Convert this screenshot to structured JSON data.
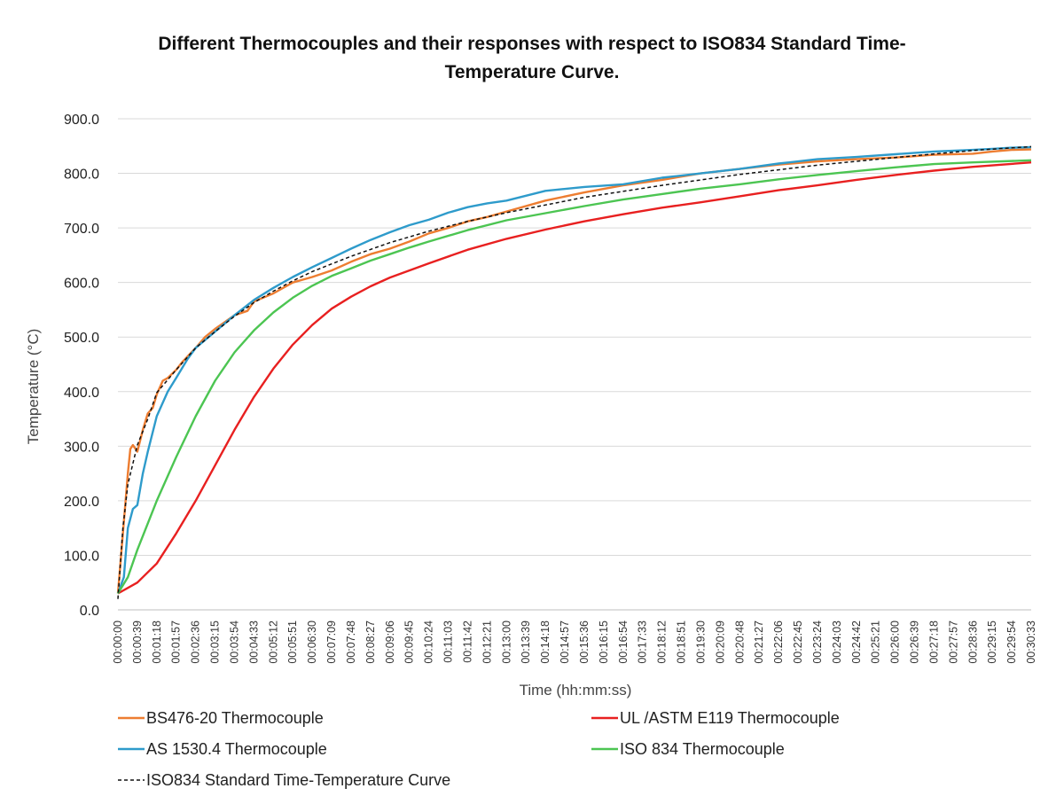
{
  "chart_data": {
    "type": "line",
    "title_line1": "Different Thermocouples and their responses with respect to ISO834 Standard Time-",
    "title_line2": "Temperature Curve.",
    "xlabel": "Time (hh:mm:ss)",
    "ylabel": "Temperature (°C)",
    "ylim": [
      0,
      900
    ],
    "y_ticks": [
      "0.0",
      "100.0",
      "200.0",
      "300.0",
      "400.0",
      "500.0",
      "600.0",
      "700.0",
      "800.0",
      "900.0"
    ],
    "x_range_seconds": [
      0,
      1833
    ],
    "x_ticks": [
      "00:00:00",
      "00:00:39",
      "00:01:18",
      "00:01:57",
      "00:02:36",
      "00:03:15",
      "00:03:54",
      "00:04:33",
      "00:05:12",
      "00:05:51",
      "00:06:30",
      "00:07:09",
      "00:07:48",
      "00:08:27",
      "00:09:06",
      "00:09:45",
      "00:10:24",
      "00:11:03",
      "00:11:42",
      "00:12:21",
      "00:13:00",
      "00:13:39",
      "00:14:18",
      "00:14:57",
      "00:15:36",
      "00:16:15",
      "00:16:54",
      "00:17:33",
      "00:18:12",
      "00:18:51",
      "00:19:30",
      "00:20:09",
      "00:20:48",
      "00:21:27",
      "00:22:06",
      "00:22:45",
      "00:23:24",
      "00:24:03",
      "00:24:42",
      "00:25:21",
      "00:26:00",
      "00:26:39",
      "00:27:18",
      "00:27:57",
      "00:28:36",
      "00:29:15",
      "00:29:54",
      "00:30:33"
    ],
    "grid": "horizontal",
    "legend_position": "bottom",
    "series": [
      {
        "name": "BS476-20 Thermocouple",
        "color": "#ED7D31",
        "dash": "solid",
        "x": [
          0,
          10,
          20,
          25,
          30,
          39,
          50,
          60,
          70,
          78,
          90,
          100,
          117,
          130,
          156,
          175,
          195,
          234,
          260,
          273,
          312,
          351,
          390,
          429,
          468,
          507,
          546,
          585,
          624,
          663,
          702,
          741,
          780,
          858,
          936,
          1014,
          1092,
          1170,
          1248,
          1326,
          1404,
          1482,
          1560,
          1638,
          1716,
          1755,
          1794,
          1833
        ],
        "y": [
          30,
          140,
          250,
          295,
          302,
          290,
          330,
          360,
          370,
          395,
          420,
          425,
          440,
          455,
          480,
          500,
          515,
          540,
          548,
          565,
          580,
          600,
          610,
          622,
          638,
          652,
          662,
          675,
          690,
          700,
          712,
          720,
          730,
          750,
          765,
          778,
          788,
          800,
          808,
          816,
          822,
          826,
          829,
          834,
          836,
          840,
          843,
          844
        ]
      },
      {
        "name": "UL /ASTM E119 Thermocouple",
        "color": "#E82020",
        "dash": "solid",
        "x": [
          0,
          39,
          78,
          117,
          156,
          195,
          234,
          273,
          312,
          351,
          390,
          429,
          468,
          507,
          546,
          585,
          624,
          702,
          780,
          858,
          936,
          1014,
          1092,
          1170,
          1248,
          1326,
          1404,
          1482,
          1560,
          1638,
          1716,
          1833
        ],
        "y": [
          30,
          50,
          85,
          140,
          200,
          265,
          330,
          390,
          442,
          486,
          522,
          552,
          574,
          593,
          609,
          622,
          635,
          660,
          680,
          697,
          712,
          725,
          737,
          747,
          758,
          769,
          778,
          788,
          797,
          805,
          812,
          820
        ]
      },
      {
        "name": "AS 1530.4 Thermocouple",
        "color": "#2E9BCB",
        "dash": "solid",
        "x": [
          0,
          12,
          20,
          30,
          39,
          50,
          60,
          78,
          100,
          117,
          140,
          156,
          195,
          234,
          273,
          312,
          351,
          390,
          429,
          468,
          507,
          546,
          585,
          624,
          663,
          702,
          741,
          780,
          858,
          936,
          1014,
          1092,
          1170,
          1248,
          1326,
          1404,
          1482,
          1560,
          1638,
          1716,
          1755,
          1794,
          1833
        ],
        "y": [
          30,
          60,
          150,
          185,
          192,
          250,
          290,
          355,
          400,
          425,
          460,
          480,
          510,
          540,
          568,
          590,
          610,
          628,
          645,
          662,
          678,
          692,
          705,
          715,
          728,
          738,
          745,
          750,
          768,
          775,
          780,
          792,
          800,
          808,
          818,
          826,
          830,
          835,
          840,
          843,
          845,
          847,
          848
        ]
      },
      {
        "name": "ISO 834 Thermocouple",
        "color": "#4CC552",
        "dash": "solid",
        "x": [
          0,
          20,
          39,
          78,
          117,
          156,
          195,
          234,
          273,
          312,
          351,
          390,
          429,
          468,
          507,
          546,
          585,
          624,
          702,
          780,
          858,
          936,
          1014,
          1092,
          1170,
          1248,
          1326,
          1404,
          1482,
          1560,
          1638,
          1716,
          1833
        ],
        "y": [
          30,
          60,
          110,
          200,
          280,
          355,
          420,
          472,
          512,
          545,
          572,
          594,
          612,
          626,
          640,
          652,
          664,
          675,
          696,
          714,
          727,
          740,
          752,
          762,
          772,
          780,
          789,
          797,
          804,
          811,
          817,
          820,
          824
        ]
      },
      {
        "name": "ISO834 Standard Time-Temperature Curve",
        "color": "#111111",
        "dash": "dashed",
        "x": [
          0,
          10,
          20,
          39,
          60,
          78,
          117,
          156,
          195,
          234,
          273,
          312,
          351,
          390,
          429,
          468,
          546,
          624,
          702,
          780,
          936,
          1092,
          1248,
          1404,
          1560,
          1716,
          1833
        ],
        "y": [
          20,
          150,
          230,
          302,
          350,
          398,
          440,
          480,
          510,
          538,
          563,
          584,
          603,
          620,
          634,
          648,
          673,
          694,
          712,
          728,
          756,
          778,
          798,
          815,
          829,
          842,
          849
        ]
      }
    ]
  }
}
